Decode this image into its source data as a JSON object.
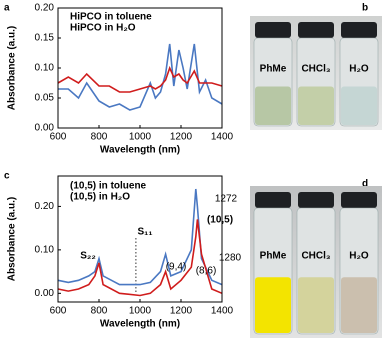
{
  "chart_data": [
    {
      "type": "line",
      "panel": "a",
      "xlabel": "Wavelength (nm)",
      "ylabel": "Absorbance (a.u.)",
      "x": [
        600,
        650,
        700,
        740,
        800,
        850,
        900,
        950,
        1000,
        1050,
        1075,
        1100,
        1125,
        1145,
        1165,
        1190,
        1210,
        1230,
        1265,
        1290,
        1320,
        1350,
        1400
      ],
      "series": [
        {
          "name": "HiPCO in toluene",
          "color": "#4a78c2",
          "values": [
            0.065,
            0.065,
            0.05,
            0.075,
            0.045,
            0.035,
            0.04,
            0.03,
            0.035,
            0.075,
            0.05,
            0.06,
            0.09,
            0.14,
            0.07,
            0.13,
            0.1,
            0.065,
            0.14,
            0.06,
            0.08,
            0.05,
            0.04
          ]
        },
        {
          "name": "HiPCO  in H₂O",
          "color": "#d01c1c",
          "values": [
            0.075,
            0.085,
            0.075,
            0.09,
            0.07,
            0.07,
            0.06,
            0.06,
            0.065,
            0.07,
            0.065,
            0.07,
            0.08,
            0.1,
            0.085,
            0.09,
            0.08,
            0.075,
            0.095,
            0.075,
            0.075,
            0.075,
            0.07
          ]
        }
      ],
      "xlim": [
        600,
        1400
      ],
      "xticks": [
        600,
        800,
        1000,
        1200,
        1400
      ],
      "ylim": [
        0,
        0.2
      ],
      "yticks": [
        {
          "value": 0,
          "label": "0.00"
        },
        0.05,
        {
          "value": 0.1,
          "label": "0.10"
        },
        0.15,
        {
          "value": 0.2,
          "label": "0.20"
        }
      ]
    },
    {
      "type": "line",
      "panel": "c",
      "xlabel": "Wavelength (nm)",
      "ylabel": "Absorbance (a.u.)",
      "x": [
        600,
        650,
        700,
        750,
        780,
        800,
        820,
        900,
        1000,
        1050,
        1100,
        1125,
        1150,
        1200,
        1250,
        1272,
        1280,
        1300,
        1350,
        1400
      ],
      "series": [
        {
          "name": "(10,5) in toluene",
          "color": "#4a78c2",
          "values": [
            0.03,
            0.025,
            0.03,
            0.04,
            0.05,
            0.08,
            0.04,
            0.02,
            0.02,
            0.025,
            0.05,
            0.09,
            0.04,
            0.05,
            0.1,
            0.24,
            0.2,
            0.08,
            0.03,
            0.02
          ]
        },
        {
          "name": "(10,5) in H₂O",
          "color": "#d01c1c",
          "values": [
            0.01,
            0.005,
            0.01,
            0.02,
            0.04,
            0.07,
            0.02,
            0.0,
            -0.005,
            0.0,
            0.02,
            0.05,
            0.01,
            0.03,
            0.06,
            0.13,
            0.17,
            0.09,
            0.01,
            0.0
          ]
        }
      ],
      "annotations": [
        "S₂₂",
        "S₁₁",
        "(9,4)",
        "(8,6)",
        "(10,5)",
        "1272",
        "1280"
      ],
      "xlim": [
        600,
        1400
      ],
      "xticks": [
        600,
        800,
        1000,
        1200,
        1400
      ],
      "ylim": [
        -0.02,
        0.27
      ],
      "yticks": [
        {
          "value": 0,
          "label": "0.00"
        },
        {
          "value": 0.1,
          "label": "0.10"
        },
        {
          "value": 0.2,
          "label": "0.20"
        }
      ]
    }
  ],
  "photos": [
    {
      "panel": "b",
      "labels": [
        "PhMe",
        "CHCl₃",
        "H₂O"
      ]
    },
    {
      "panel": "d",
      "labels": [
        "PhMe",
        "CHCl₃",
        "H₂O"
      ]
    }
  ]
}
